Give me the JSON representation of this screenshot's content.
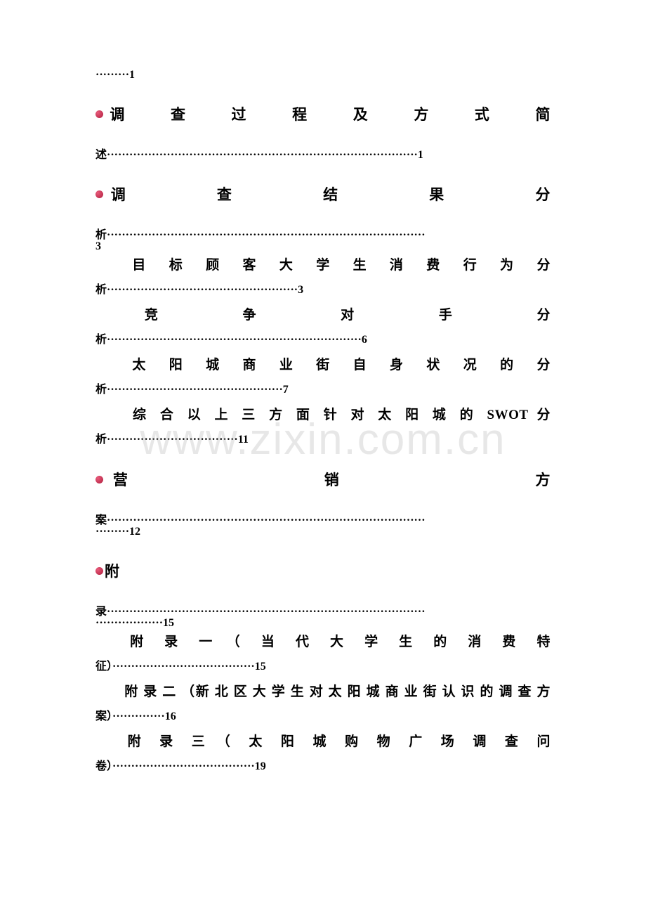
{
  "watermark": "www.zixin.com.cn",
  "entries": {
    "e0_cont": "·········1",
    "e1_line1": "调　　查　　过　　程　　及　　方　　式　　简",
    "e1_line2": "述···················································································1",
    "e2_line1": "调　　　　查　　　　结　　　　果　　　　分",
    "e2_line2": "析·····················································································",
    "e2_line3": "3",
    "e2_sub1_l1": "　　目　标　顾　客　大　学　生　消　费　行　为　分",
    "e2_sub1_l2": "析···················································3",
    "e2_sub2_l1": "　　竞　　　争　　　对　　　手　　　分",
    "e2_sub2_l2": "析····································································6",
    "e2_sub3_l1": "　　太　阳　城　商　业　街　自　身　状　况　的　分",
    "e2_sub3_l2": "析···············································7",
    "e2_sub4_l1": "　　综  合  以  上  三  方  面  针  对  太  阳  城  的  SWOT  分",
    "e2_sub4_l2": "析···································11",
    "e3_line1": "营　　　　　　　　销　　　　　　　　方",
    "e3_line2": "案·····················································································",
    "e3_line3": "·········12",
    "e4_line1": "附",
    "e4_line2": "录·····················································································",
    "e4_line3": "··················15",
    "e4_sub1_l1": "　　附　录　一　（　当　代　大　学　生　的　消　费　特",
    "e4_sub1_l2": "征）······································15",
    "e4_sub2_l1": "　　附 录 二 （新 北 区 大 学 生 对 太 阳 城 商 业 街 认 识 的 调 查 方",
    "e4_sub2_l2": "案）··············16",
    "e4_sub3_l1": "　　附　录　三　（　太　阳　城　购　物　广　场　调　查　问",
    "e4_sub3_l2": "卷）······································19"
  },
  "styles": {
    "text_color": "#000000",
    "bullet_gradient_start": "#e85a7a",
    "bullet_gradient_end": "#b01e3e",
    "background_color": "#ffffff",
    "watermark_color": "rgba(180,180,180,0.32)",
    "main_fontsize": 21,
    "sub_fontsize": 19,
    "pageref_fontsize": 16,
    "watermark_fontsize": 62
  }
}
